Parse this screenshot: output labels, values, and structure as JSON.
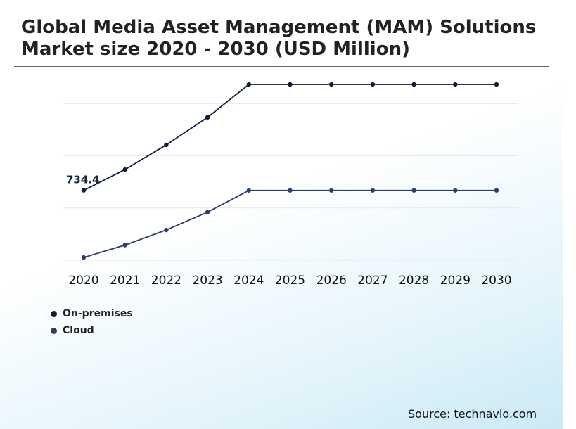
{
  "title": "Global Media Asset Management (MAM) Solutions Market size 2020 - 2030 (USD Million)",
  "source": "Source: technavio.com",
  "colors": {
    "on_premises": "#0f1c3a",
    "cloud": "#2c3e6e",
    "grid": "#e3e8ee",
    "rule": "#666666"
  },
  "chart_data": {
    "type": "line",
    "categories": [
      "2020",
      "2021",
      "2022",
      "2023",
      "2024",
      "2025",
      "2026",
      "2027",
      "2028",
      "2029",
      "2030"
    ],
    "series": [
      {
        "name": "On-premises",
        "values": [
          734.4,
          810,
          900,
          1000,
          1120,
          1120,
          1120,
          1120,
          1120,
          1120,
          1120
        ]
      },
      {
        "name": "Cloud",
        "values": [
          490,
          535,
          590,
          655,
          734,
          734,
          734,
          734,
          734,
          734,
          734
        ]
      }
    ],
    "data_labels": [
      {
        "series": 0,
        "index": 0,
        "text": "734.4"
      }
    ],
    "ylim": [
      480,
      1120
    ],
    "y_ticks": [
      480,
      670,
      860,
      1050
    ],
    "y_tick_labels_visible": false,
    "grid": "horizontal",
    "legend_position": "bottom-left"
  }
}
